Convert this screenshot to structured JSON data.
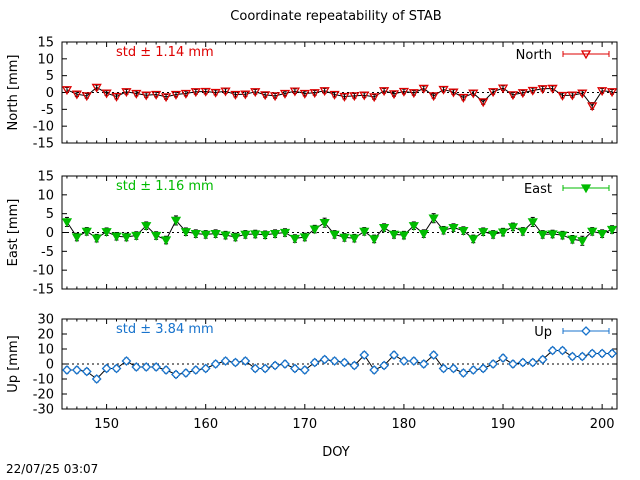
{
  "figure": {
    "title": "Coordinate repeatability of STAB",
    "timestamp": "22/07/25 03:07",
    "xlabel": "DOY"
  },
  "chart_data": [
    {
      "type": "line",
      "panel": "north",
      "ylabel": "North [mm]",
      "std_label": "std ± 1.14 mm",
      "legend": "North",
      "legend_position": "top-right",
      "color": "#dd0000",
      "marker": "triangle-down-open",
      "xlim": [
        145.5,
        201.5
      ],
      "ylim": [
        -15,
        15
      ],
      "yticks": [
        -15,
        -10,
        -5,
        0,
        5,
        10,
        15
      ],
      "x": [
        146,
        147,
        148,
        149,
        150,
        151,
        152,
        153,
        154,
        155,
        156,
        157,
        158,
        159,
        160,
        161,
        162,
        163,
        164,
        165,
        166,
        167,
        168,
        169,
        170,
        171,
        172,
        173,
        174,
        175,
        176,
        177,
        178,
        179,
        180,
        181,
        182,
        183,
        184,
        185,
        186,
        187,
        188,
        189,
        190,
        191,
        192,
        193,
        194,
        195,
        196,
        197,
        198,
        199,
        200,
        201
      ],
      "values": [
        0.8,
        -0.5,
        -1.0,
        1.5,
        -0.2,
        -1.2,
        0.2,
        -0.3,
        -0.8,
        -0.6,
        -1.3,
        -0.6,
        -0.3,
        0.2,
        0.3,
        0.0,
        0.4,
        -0.6,
        -0.5,
        0.2,
        -0.7,
        -1.0,
        -0.3,
        0.4,
        -0.3,
        -0.1,
        0.5,
        -0.6,
        -1.2,
        -1.0,
        -0.8,
        -1.3,
        0.5,
        -0.4,
        0.3,
        -0.1,
        1.2,
        -1.0,
        0.9,
        0.1,
        -1.5,
        -0.2,
        -2.8,
        0.2,
        1.3,
        -0.7,
        -0.1,
        0.6,
        1.1,
        1.2,
        -0.9,
        -0.8,
        -0.2,
        -4.0,
        0.5,
        0.2
      ],
      "errors": [
        0.7,
        0.7,
        0.7,
        0.7,
        0.7,
        0.7,
        0.7,
        0.7,
        0.7,
        0.7,
        0.7,
        0.7,
        0.7,
        0.7,
        0.7,
        0.7,
        0.7,
        0.7,
        0.7,
        0.7,
        0.7,
        0.7,
        0.7,
        0.7,
        0.7,
        0.7,
        0.7,
        0.7,
        0.7,
        0.7,
        0.7,
        0.7,
        0.7,
        0.7,
        0.7,
        0.7,
        0.7,
        0.7,
        0.7,
        0.7,
        0.7,
        0.7,
        0.7,
        0.7,
        0.7,
        0.7,
        0.7,
        0.7,
        0.7,
        0.7,
        0.7,
        0.7,
        0.7,
        1.0,
        0.7,
        0.7
      ]
    },
    {
      "type": "line",
      "panel": "east",
      "ylabel": "East [mm]",
      "std_label": "std ± 1.16 mm",
      "legend": "East",
      "legend_position": "top-right",
      "color": "#00bb00",
      "marker": "triangle-down-filled",
      "xlim": [
        145.5,
        201.5
      ],
      "ylim": [
        -15,
        15
      ],
      "yticks": [
        -15,
        -10,
        -5,
        0,
        5,
        10,
        15
      ],
      "x": [
        146,
        147,
        148,
        149,
        150,
        151,
        152,
        153,
        154,
        155,
        156,
        157,
        158,
        159,
        160,
        161,
        162,
        163,
        164,
        165,
        166,
        167,
        168,
        169,
        170,
        171,
        172,
        173,
        174,
        175,
        176,
        177,
        178,
        179,
        180,
        181,
        182,
        183,
        184,
        185,
        186,
        187,
        188,
        189,
        190,
        191,
        192,
        193,
        194,
        195,
        196,
        197,
        198,
        199,
        200,
        201
      ],
      "values": [
        2.8,
        -1.2,
        0.3,
        -1.5,
        0.2,
        -1.0,
        -1.2,
        -0.8,
        1.8,
        -0.8,
        -2.0,
        3.2,
        0.2,
        -0.3,
        -0.5,
        -0.3,
        -0.7,
        -1.2,
        -0.5,
        -0.4,
        -0.6,
        -0.3,
        0.0,
        -1.6,
        -1.2,
        0.9,
        2.6,
        -0.5,
        -1.3,
        -1.5,
        0.3,
        -1.7,
        1.3,
        -0.5,
        -0.7,
        1.8,
        -0.3,
        3.8,
        0.6,
        1.3,
        0.5,
        -1.7,
        0.2,
        -0.5,
        0.1,
        1.5,
        0.3,
        2.8,
        -0.5,
        -0.4,
        -0.7,
        -1.8,
        -2.2,
        0.3,
        -0.3,
        0.8
      ],
      "errors": [
        1.2,
        1.0,
        1.0,
        1.0,
        1.0,
        1.0,
        1.0,
        1.0,
        1.0,
        1.0,
        1.0,
        1.2,
        1.0,
        1.0,
        1.0,
        1.0,
        1.0,
        1.0,
        1.0,
        1.0,
        1.0,
        1.0,
        1.0,
        1.0,
        1.0,
        1.0,
        1.2,
        1.0,
        1.0,
        1.0,
        1.0,
        1.0,
        1.0,
        1.0,
        1.0,
        1.0,
        1.0,
        1.2,
        1.0,
        1.0,
        1.0,
        1.0,
        1.0,
        1.0,
        1.0,
        1.0,
        1.0,
        1.2,
        1.0,
        1.0,
        1.0,
        1.0,
        1.2,
        1.0,
        1.0,
        1.0
      ]
    },
    {
      "type": "line",
      "panel": "up",
      "ylabel": "Up [mm]",
      "std_label": "std ± 3.84 mm",
      "legend": "Up",
      "legend_position": "top-right",
      "color": "#1873cc",
      "marker": "diamond-open",
      "xlim": [
        145.5,
        201.5
      ],
      "ylim": [
        -30,
        30
      ],
      "yticks": [
        -30,
        -20,
        -10,
        0,
        10,
        20,
        30
      ],
      "x": [
        146,
        147,
        148,
        149,
        150,
        151,
        152,
        153,
        154,
        155,
        156,
        157,
        158,
        159,
        160,
        161,
        162,
        163,
        164,
        165,
        166,
        167,
        168,
        169,
        170,
        171,
        172,
        173,
        174,
        175,
        176,
        177,
        178,
        179,
        180,
        181,
        182,
        183,
        184,
        185,
        186,
        187,
        188,
        189,
        190,
        191,
        192,
        193,
        194,
        195,
        196,
        197,
        198,
        199,
        200,
        201
      ],
      "values": [
        -4,
        -4,
        -5,
        -10,
        -3,
        -3,
        2,
        -2,
        -2,
        -2,
        -4,
        -7,
        -6,
        -4,
        -3,
        0,
        2,
        1,
        2,
        -3,
        -3,
        -1,
        0,
        -3,
        -4,
        1,
        3,
        2,
        1,
        -1,
        6,
        -4,
        -1,
        6,
        2,
        2,
        0,
        6,
        -3,
        -3,
        -6,
        -4,
        -3,
        0,
        4,
        0,
        1,
        1,
        3,
        9,
        9,
        5,
        5,
        7,
        7,
        7
      ],
      "errors": [
        2,
        2,
        2,
        2,
        2,
        2,
        2,
        2,
        2,
        2,
        2,
        2,
        2,
        2,
        2,
        2,
        2,
        2,
        2,
        2,
        2,
        2,
        2,
        2,
        2,
        2,
        2,
        2,
        2,
        2,
        2,
        2,
        2,
        2,
        2,
        2,
        2,
        2,
        2,
        2,
        2,
        2,
        2,
        2,
        2,
        2,
        2,
        2,
        2,
        2,
        2,
        2,
        2,
        2,
        2,
        2
      ],
      "xticks": [
        150,
        160,
        170,
        180,
        190,
        200
      ]
    }
  ]
}
